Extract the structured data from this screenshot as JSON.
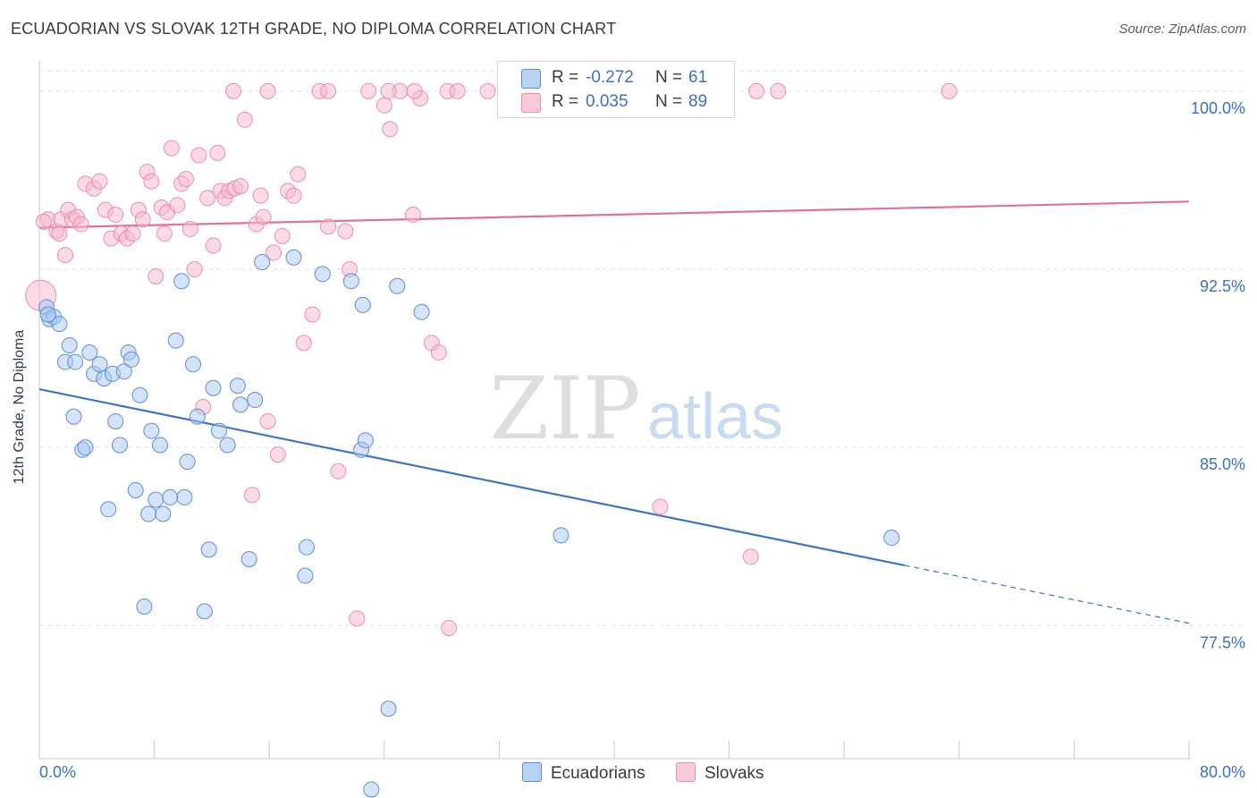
{
  "title": "ECUADORIAN VS SLOVAK 12TH GRADE, NO DIPLOMA CORRELATION CHART",
  "source": "Source: ZipAtlas.com",
  "watermark": {
    "zip": "ZIP",
    "atlas": "atlas"
  },
  "legend": {
    "ecuadorians": {
      "r_label": "R =",
      "r_value": "-0.272",
      "n_label": "N =",
      "n_value": "61"
    },
    "slovaks": {
      "r_label": "R =",
      "r_value": "0.035",
      "n_label": "N =",
      "n_value": "89"
    }
  },
  "colors": {
    "ecuadorians_fill": "#a9c8f0",
    "ecuadorians_stroke": "#5b8fd8",
    "ecuadorians_line": "#3a74cc",
    "slovaks_fill": "#f6b8cc",
    "slovaks_stroke": "#e890ab",
    "slovaks_line": "#e0719a",
    "tick_label": "#3a70c8",
    "grid": "#e3e3e3"
  },
  "chart_data": {
    "type": "scatter",
    "title": "ECUADORIAN VS SLOVAK 12TH GRADE, NO DIPLOMA CORRELATION CHART",
    "xlabel": "",
    "ylabel": "12th Grade, No Diploma",
    "xlim": [
      0,
      80
    ],
    "ylim": [
      71.9,
      101.2
    ],
    "x_tick_labels": [
      "0.0%",
      "80.0%"
    ],
    "y_ticks": [
      77.5,
      85.0,
      92.5,
      100.0
    ],
    "y_tick_labels": [
      "77.5%",
      "85.0%",
      "92.5%",
      "100.0%"
    ],
    "grid": true,
    "legend_position": "bottom-center",
    "series": [
      {
        "name": "Ecuadorians",
        "r": -0.272,
        "n": 61,
        "trend": {
          "x_start": 0,
          "y_start": 87.45,
          "x_solid_end": 60.2,
          "x_end": 80,
          "y_end": 77.6
        },
        "points": [
          [
            0.5,
            90.9
          ],
          [
            0.7,
            90.4
          ],
          [
            1.0,
            90.5
          ],
          [
            1.4,
            90.2
          ],
          [
            1.8,
            88.6
          ],
          [
            2.1,
            89.3
          ],
          [
            2.5,
            88.6
          ],
          [
            2.4,
            86.3
          ],
          [
            3.0,
            84.9
          ],
          [
            3.2,
            85.0
          ],
          [
            3.5,
            89.0
          ],
          [
            3.8,
            88.1
          ],
          [
            4.2,
            88.5
          ],
          [
            4.5,
            87.9
          ],
          [
            4.8,
            82.4
          ],
          [
            5.1,
            88.1
          ],
          [
            5.3,
            86.1
          ],
          [
            5.6,
            85.1
          ],
          [
            5.9,
            88.2
          ],
          [
            6.2,
            89.0
          ],
          [
            6.4,
            88.7
          ],
          [
            6.7,
            83.2
          ],
          [
            7.0,
            87.2
          ],
          [
            7.3,
            78.3
          ],
          [
            7.6,
            82.2
          ],
          [
            7.8,
            85.7
          ],
          [
            8.1,
            82.8
          ],
          [
            8.4,
            85.1
          ],
          [
            8.6,
            82.2
          ],
          [
            9.1,
            82.9
          ],
          [
            9.5,
            89.5
          ],
          [
            9.9,
            92.0
          ],
          [
            10.1,
            82.9
          ],
          [
            10.3,
            84.4
          ],
          [
            10.7,
            88.5
          ],
          [
            11.0,
            86.3
          ],
          [
            11.5,
            78.1
          ],
          [
            11.8,
            80.7
          ],
          [
            12.1,
            87.5
          ],
          [
            12.5,
            85.7
          ],
          [
            13.1,
            85.1
          ],
          [
            13.8,
            87.6
          ],
          [
            14.0,
            86.8
          ],
          [
            14.6,
            80.3
          ],
          [
            15.0,
            87.0
          ],
          [
            15.5,
            92.8
          ],
          [
            17.7,
            93.0
          ],
          [
            18.6,
            80.8
          ],
          [
            18.5,
            79.6
          ],
          [
            19.7,
            92.3
          ],
          [
            21.7,
            92.0
          ],
          [
            22.4,
            84.9
          ],
          [
            22.7,
            85.3
          ],
          [
            22.5,
            91.0
          ],
          [
            23.1,
            70.6
          ],
          [
            24.3,
            74.0
          ],
          [
            24.9,
            91.8
          ],
          [
            26.6,
            90.7
          ],
          [
            36.3,
            81.3
          ],
          [
            59.3,
            81.2
          ],
          [
            0.6,
            90.6
          ]
        ]
      },
      {
        "name": "Slovaks",
        "r": 0.035,
        "n": 89,
        "trend": {
          "x_start": 0,
          "y_start": 94.25,
          "x_end": 80,
          "y_end": 95.35
        },
        "points": [
          [
            0.1,
            91.4
          ],
          [
            0.6,
            94.6
          ],
          [
            1.2,
            94.1
          ],
          [
            1.5,
            94.6
          ],
          [
            1.8,
            93.1
          ],
          [
            2.0,
            95.0
          ],
          [
            2.3,
            94.6
          ],
          [
            2.6,
            94.7
          ],
          [
            2.9,
            94.4
          ],
          [
            3.2,
            96.1
          ],
          [
            3.8,
            95.9
          ],
          [
            4.2,
            96.2
          ],
          [
            4.6,
            95.0
          ],
          [
            5.0,
            93.8
          ],
          [
            5.3,
            94.8
          ],
          [
            5.7,
            94.0
          ],
          [
            6.1,
            93.8
          ],
          [
            6.5,
            94.0
          ],
          [
            6.9,
            95.0
          ],
          [
            7.2,
            94.6
          ],
          [
            7.5,
            96.6
          ],
          [
            7.8,
            96.2
          ],
          [
            8.1,
            92.2
          ],
          [
            8.5,
            95.1
          ],
          [
            8.7,
            94.0
          ],
          [
            8.9,
            94.9
          ],
          [
            9.2,
            97.6
          ],
          [
            9.6,
            95.2
          ],
          [
            9.9,
            96.1
          ],
          [
            10.2,
            96.3
          ],
          [
            10.5,
            94.2
          ],
          [
            10.8,
            92.5
          ],
          [
            11.1,
            97.3
          ],
          [
            11.4,
            86.7
          ],
          [
            11.7,
            95.5
          ],
          [
            12.1,
            93.5
          ],
          [
            12.4,
            97.4
          ],
          [
            12.6,
            95.8
          ],
          [
            12.9,
            95.5
          ],
          [
            13.2,
            95.8
          ],
          [
            13.6,
            95.9
          ],
          [
            14.0,
            96.0
          ],
          [
            14.3,
            98.8
          ],
          [
            14.8,
            83.0
          ],
          [
            15.1,
            94.4
          ],
          [
            15.4,
            95.6
          ],
          [
            15.6,
            94.7
          ],
          [
            15.9,
            86.1
          ],
          [
            16.3,
            93.2
          ],
          [
            16.6,
            84.7
          ],
          [
            16.9,
            93.9
          ],
          [
            17.3,
            95.8
          ],
          [
            17.7,
            95.6
          ],
          [
            18.0,
            96.5
          ],
          [
            18.4,
            89.4
          ],
          [
            19.0,
            90.6
          ],
          [
            20.1,
            94.3
          ],
          [
            20.8,
            84.0
          ],
          [
            21.3,
            94.1
          ],
          [
            21.6,
            92.5
          ],
          [
            22.1,
            77.8
          ],
          [
            24.0,
            99.4
          ],
          [
            24.4,
            98.4
          ],
          [
            25.1,
            100.0
          ],
          [
            26.0,
            94.8
          ],
          [
            26.5,
            99.7
          ],
          [
            27.3,
            89.4
          ],
          [
            27.8,
            89.0
          ],
          [
            28.5,
            77.4
          ],
          [
            13.5,
            100.0
          ],
          [
            15.9,
            100.0
          ],
          [
            19.5,
            100.0
          ],
          [
            20.1,
            100.0
          ],
          [
            22.9,
            100.0
          ],
          [
            24.3,
            100.0
          ],
          [
            26.1,
            100.0
          ],
          [
            28.4,
            100.0
          ],
          [
            29.1,
            100.0
          ],
          [
            31.2,
            100.0
          ],
          [
            33.1,
            100.0
          ],
          [
            36.5,
            100.0
          ],
          [
            38.4,
            100.0
          ],
          [
            43.2,
            82.5
          ],
          [
            49.5,
            80.4
          ],
          [
            49.9,
            100.0
          ],
          [
            51.4,
            100.0
          ],
          [
            63.3,
            100.0
          ],
          [
            0.3,
            94.5
          ],
          [
            1.4,
            94.0
          ]
        ]
      }
    ]
  }
}
